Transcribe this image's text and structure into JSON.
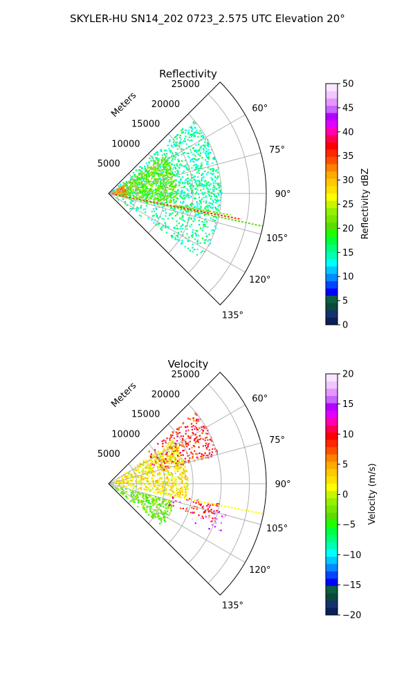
{
  "figure": {
    "suptitle": "SKYLER-HU  SN14_202  0723_2.575 UTC Elevation 20°"
  },
  "chart_data": [
    {
      "type": "heatmap",
      "subtype": "polar-sector-ppi",
      "title": "Reflectivity",
      "radial_label": "Meters",
      "radial_ticks": [
        5000,
        10000,
        15000,
        20000,
        25000
      ],
      "radial_range": [
        0,
        28000
      ],
      "angle_ticks": [
        60,
        75,
        90,
        105,
        120,
        135
      ],
      "angle_range_deg": [
        45,
        135
      ],
      "grid": true,
      "colorbar": {
        "label": "Reflectivity dBZ",
        "ticks": [
          0,
          5,
          10,
          15,
          20,
          25,
          30,
          35,
          40,
          45,
          50
        ],
        "range": [
          0,
          50
        ],
        "colors": [
          "#0b1f5a",
          "#14326e",
          "#0a4a3a",
          "#0d5e42",
          "#0000ff",
          "#0046ff",
          "#008cff",
          "#00c8ff",
          "#00ffff",
          "#00ffb4",
          "#00ff78",
          "#00ff3c",
          "#1eff00",
          "#5adc00",
          "#78e600",
          "#96f000",
          "#c8f500",
          "#ffff00",
          "#ffe100",
          "#ffc800",
          "#ffaa00",
          "#ff8200",
          "#ff5000",
          "#ff2800",
          "#ff0000",
          "#ff0050",
          "#ff00b4",
          "#e100ff",
          "#b400ff",
          "#c864ff",
          "#e696ff",
          "#f0c8ff",
          "#fae6ff"
        ]
      },
      "features": [
        {
          "kind": "sector",
          "az": [
            48,
            100
          ],
          "r": [
            0,
            20000
          ],
          "value": 15,
          "density": 0.55
        },
        {
          "kind": "sector",
          "az": [
            55,
            98
          ],
          "r": [
            0,
            12000
          ],
          "value": 21,
          "density": 0.75
        },
        {
          "kind": "sector",
          "az": [
            60,
            90
          ],
          "r": [
            0,
            3000
          ],
          "value": 32,
          "density": 0.6
        },
        {
          "kind": "sector",
          "az": [
            100,
            125
          ],
          "r": [
            0,
            20000
          ],
          "value": 15,
          "density": 0.35
        },
        {
          "kind": "line",
          "az": 101,
          "r": [
            0,
            24000
          ],
          "value": 36
        },
        {
          "kind": "line",
          "az": 102,
          "r": [
            2000,
            28000
          ],
          "value": 20
        },
        {
          "kind": "line",
          "az": 100,
          "r": [
            12000,
            22000
          ],
          "value": 22
        }
      ]
    },
    {
      "type": "heatmap",
      "subtype": "polar-sector-ppi",
      "title": "Velocity",
      "radial_label": "Meters",
      "radial_ticks": [
        5000,
        10000,
        15000,
        20000,
        25000
      ],
      "radial_range": [
        0,
        28000
      ],
      "angle_ticks": [
        60,
        75,
        90,
        105,
        120,
        135
      ],
      "angle_range_deg": [
        45,
        135
      ],
      "grid": true,
      "colorbar": {
        "label": "Velocity (m/s)",
        "ticks": [
          -20,
          -15,
          -10,
          -5,
          0,
          5,
          10,
          15,
          20
        ],
        "range": [
          -20,
          20
        ],
        "colors": [
          "#0b1f5a",
          "#14326e",
          "#0a4a3a",
          "#0d5e42",
          "#0000ff",
          "#0046ff",
          "#008cff",
          "#00c8ff",
          "#00ffff",
          "#00ffb4",
          "#00ff78",
          "#00ff3c",
          "#1eff00",
          "#5adc00",
          "#78e600",
          "#96f000",
          "#c8f500",
          "#ffff00",
          "#ffe100",
          "#ffc800",
          "#ffaa00",
          "#ff8200",
          "#ff5000",
          "#ff2800",
          "#ff0000",
          "#ff0050",
          "#ff00b4",
          "#e100ff",
          "#b400ff",
          "#c864ff",
          "#e696ff",
          "#f0c8ff",
          "#fae6ff"
        ]
      },
      "features": [
        {
          "kind": "sector",
          "az": [
            55,
            100
          ],
          "r": [
            0,
            14000
          ],
          "value": 2,
          "density": 0.7
        },
        {
          "kind": "sector",
          "az": [
            50,
            75
          ],
          "r": [
            8000,
            20000
          ],
          "value": 9,
          "density": 0.55
        },
        {
          "kind": "sector",
          "az": [
            105,
            128
          ],
          "r": [
            0,
            12000
          ],
          "value": -3,
          "density": 0.6
        },
        {
          "kind": "sector",
          "az": [
            100,
            110
          ],
          "r": [
            10000,
            20000
          ],
          "value": 10,
          "density": 0.5
        },
        {
          "kind": "sector",
          "az": [
            103,
            115
          ],
          "r": [
            14000,
            22000
          ],
          "value": 16,
          "density": 0.15
        },
        {
          "kind": "line",
          "az": 101,
          "r": [
            8000,
            28000
          ],
          "value": 1
        }
      ]
    }
  ]
}
